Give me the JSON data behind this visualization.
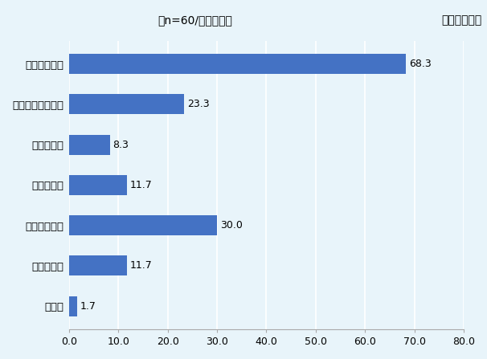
{
  "categories": [
    "国内売り上げ",
    "調達・輸入コスト",
    "生産コスト",
    "事務コスト",
    "海外売り上げ",
    "投資の減少",
    "その他"
  ],
  "values": [
    68.3,
    23.3,
    8.3,
    11.7,
    30.0,
    11.7,
    1.7
  ],
  "bar_color": "#4472C4",
  "background_color": "#E8F4FA",
  "title_left": "（n=60/複数回答）",
  "title_right": "（単位：％）",
  "xlim": [
    0,
    80
  ],
  "xticks": [
    0.0,
    10.0,
    20.0,
    30.0,
    40.0,
    50.0,
    60.0,
    70.0,
    80.0
  ],
  "xlabel_fontsize": 9,
  "ylabel_fontsize": 9.5,
  "title_fontsize": 10,
  "value_fontsize": 9,
  "bar_height": 0.5,
  "figsize": [
    6.06,
    4.47
  ],
  "dpi": 100
}
